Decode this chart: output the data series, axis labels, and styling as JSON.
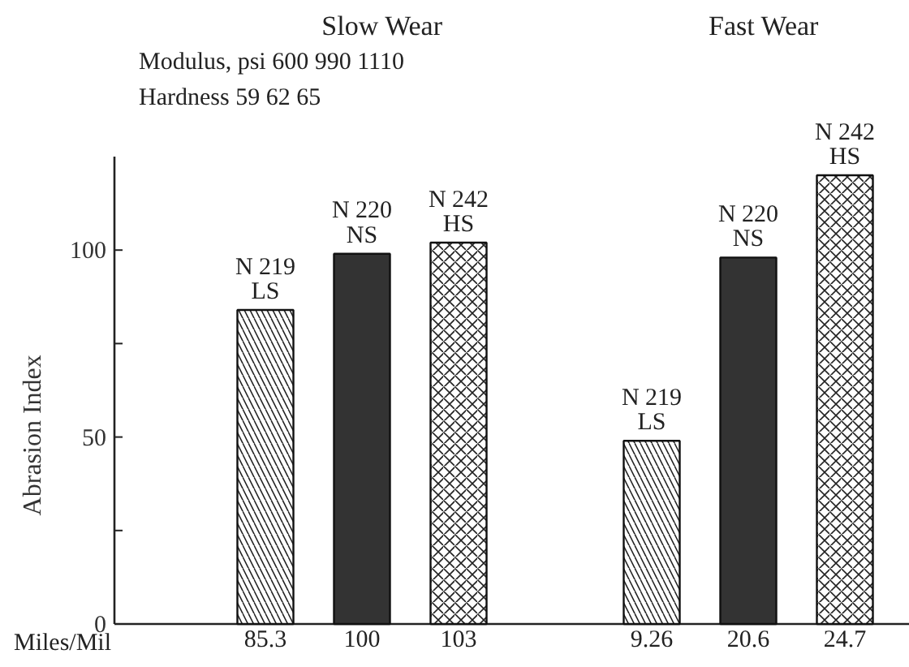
{
  "chart_data": {
    "type": "bar",
    "annotations": [
      "Slow Wear",
      "Fast Wear",
      "Modulus, psi  600  990  1110",
      "Hardness  59  62  65"
    ],
    "xlabel": "Miles/Mil",
    "ylabel": "Abrasion Index",
    "categories": [
      null,
      "85.3",
      "100",
      "103",
      null,
      "9.26",
      "20.6",
      "24.7"
    ],
    "series": [
      {
        "name": "N 219\nLS",
        "color": "#ffffff",
        "values": [
          null,
          84,
          null,
          null,
          null,
          49,
          null,
          null
        ]
      },
      {
        "name": "N 220\nNS",
        "color": "#333333",
        "values": [
          null,
          null,
          99,
          null,
          null,
          null,
          98,
          null
        ]
      },
      {
        "name": "N 242\nHS",
        "color": "#ffffff",
        "values": [
          null,
          null,
          null,
          102,
          null,
          null,
          null,
          120
        ]
      }
    ],
    "ylim": [
      0,
      125
    ],
    "yticks": [
      0,
      {
        "value": 25,
        "label": null
      },
      50,
      {
        "value": 75,
        "label": null
      },
      100
    ],
    "grid": false
  }
}
